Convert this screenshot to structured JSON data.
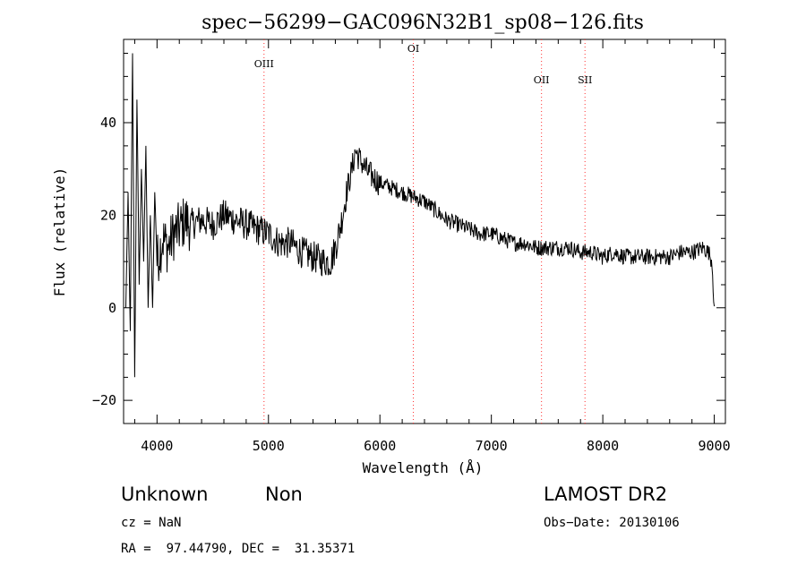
{
  "chart_data": {
    "type": "line",
    "title": "spec−56299−GAC096N32B1_sp08−126.fits",
    "xlabel": "Wavelength (Å)",
    "ylabel": "Flux (relative)",
    "xlim": [
      3700,
      9100
    ],
    "ylim": [
      -25,
      58
    ],
    "x_ticks": [
      4000,
      5000,
      6000,
      7000,
      8000,
      9000
    ],
    "x_tick_labels": [
      "4000",
      "5000",
      "6000",
      "7000",
      "8000",
      "9000"
    ],
    "y_ticks": [
      -20,
      0,
      20,
      40
    ],
    "y_tick_labels": [
      "−20",
      "0",
      "20",
      "40"
    ],
    "grid": false,
    "lines": [
      {
        "label": "OIII",
        "x": 4960
      },
      {
        "label": "OI",
        "x": 6300
      },
      {
        "label": "OII",
        "x": 7450
      },
      {
        "label": "SII",
        "x": 7840
      }
    ],
    "series": [
      {
        "x": [
          3720,
          3740,
          3760,
          3780,
          3800,
          3820,
          3840,
          3860,
          3880,
          3900,
          3920,
          3940,
          3960,
          3980,
          4000,
          4050,
          4100,
          4150,
          4200,
          4250,
          4300,
          4400,
          4500,
          4600,
          4700,
          4800,
          4900,
          5000,
          5100,
          5200,
          5300,
          5400,
          5500,
          5560,
          5600,
          5650,
          5700,
          5750,
          5780,
          5820,
          5900,
          6000,
          6100,
          6200,
          6300,
          6400,
          6500,
          6600,
          6700,
          6800,
          6900,
          7000,
          7100,
          7200,
          7300,
          7400,
          7500,
          7600,
          7700,
          7800,
          7900,
          8000,
          8100,
          8200,
          8300,
          8400,
          8500,
          8600,
          8700,
          8800,
          8900,
          8950,
          8980,
          9000
        ],
        "y": [
          0,
          25,
          -5,
          55,
          -15,
          45,
          5,
          30,
          10,
          35,
          0,
          20,
          0,
          25,
          10,
          15,
          13,
          16,
          17,
          19,
          18,
          19,
          18,
          20,
          19,
          18,
          17,
          16,
          14,
          14,
          12,
          11,
          10,
          10,
          13,
          18,
          25,
          30,
          34,
          32,
          29,
          27,
          26,
          25,
          24,
          23,
          21,
          19,
          18,
          17,
          16,
          16,
          15,
          14,
          14,
          13,
          13,
          13,
          13,
          12,
          12,
          11,
          12,
          11,
          11,
          11,
          11,
          11,
          12,
          12,
          13,
          12,
          10,
          0
        ]
      }
    ]
  },
  "footer": {
    "object_class": "Unknown",
    "object_subclass": "Non",
    "survey": "LAMOST DR2",
    "cz": "cz = NaN",
    "obs_date": "Obs−Date: 20130106",
    "coords": "RA =  97.44790, DEC =  31.35371"
  }
}
